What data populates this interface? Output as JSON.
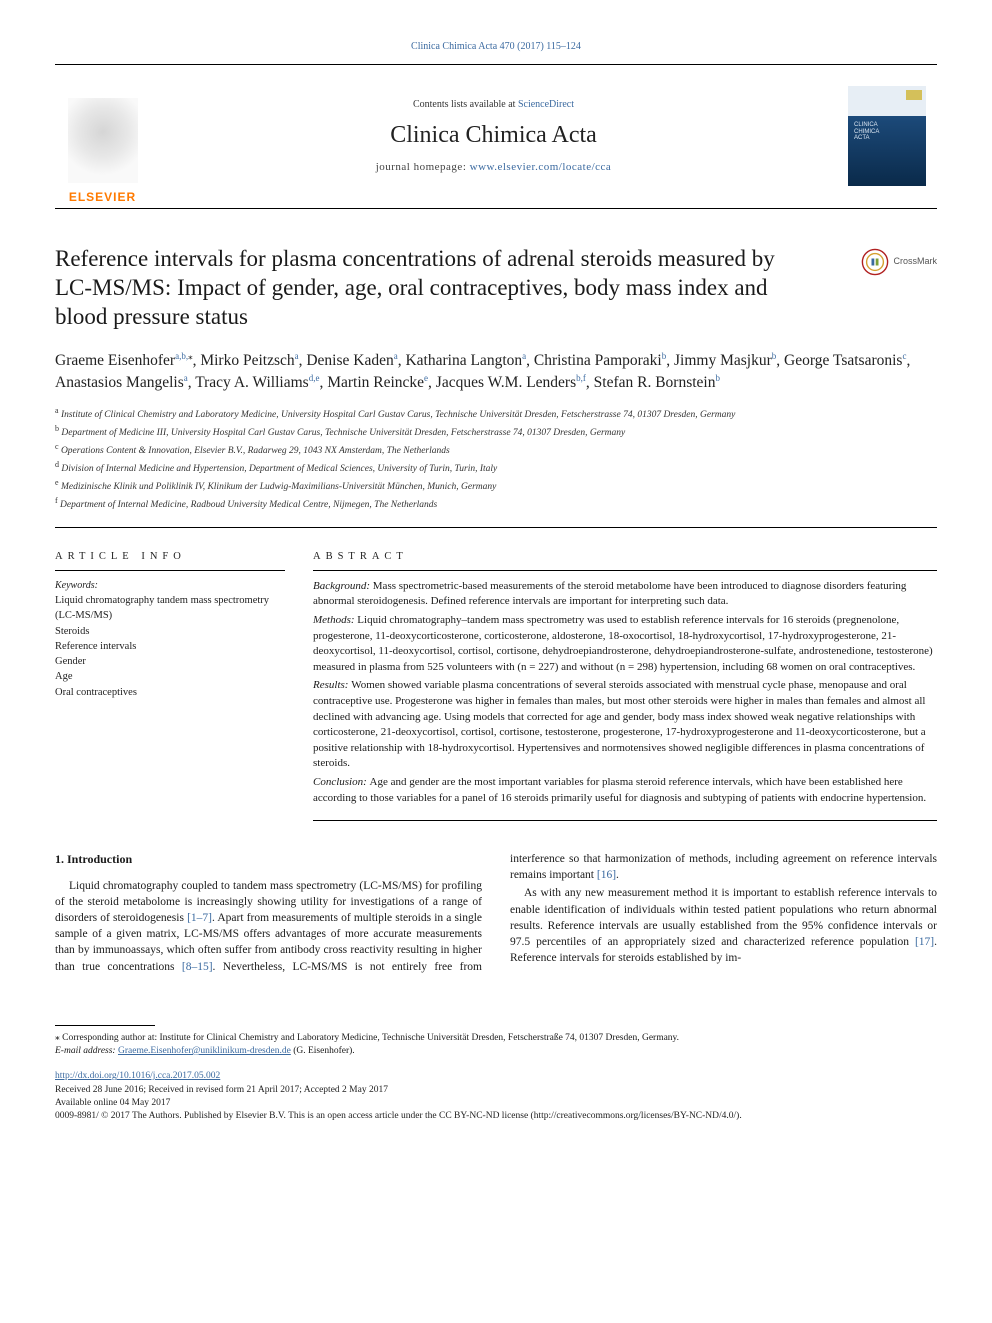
{
  "citation": "Clinica Chimica Acta 470 (2017) 115–124",
  "banner": {
    "contents_prefix": "Contents lists available at ",
    "contents_link": "ScienceDirect",
    "journal": "Clinica Chimica Acta",
    "homepage_prefix": "journal homepage: ",
    "homepage_url": "www.elsevier.com/locate/cca",
    "elsevier": "ELSEVIER",
    "cover_text": "CLINICA\nCHIMICA\nACTA"
  },
  "title": "Reference intervals for plasma concentrations of adrenal steroids measured by LC-MS/MS: Impact of gender, age, oral contraceptives, body mass index and blood pressure status",
  "crossmark": "CrossMark",
  "authors_html": "Graeme Eisenhofer<sup>a,b,</sup><sup class='star'>⁎</sup>, Mirko Peitzsch<sup>a</sup>, Denise Kaden<sup>a</sup>, Katharina Langton<sup>a</sup>, Christina Pamporaki<sup>b</sup>, Jimmy Masjkur<sup>b</sup>, George Tsatsaronis<sup>c</sup>, Anastasios Mangelis<sup>a</sup>, Tracy A. Williams<sup>d,e</sup>, Martin Reincke<sup>e</sup>, Jacques W.M. Lenders<sup>b,f</sup>, Stefan R. Bornstein<sup>b</sup>",
  "affiliations": [
    {
      "k": "a",
      "v": "Institute of Clinical Chemistry and Laboratory Medicine, University Hospital Carl Gustav Carus, Technische Universität Dresden, Fetscherstrasse 74, 01307 Dresden, Germany"
    },
    {
      "k": "b",
      "v": "Department of Medicine III, University Hospital Carl Gustav Carus, Technische Universität Dresden, Fetscherstrasse 74, 01307 Dresden, Germany"
    },
    {
      "k": "c",
      "v": "Operations Content & Innovation, Elsevier B.V., Radarweg 29, 1043 NX Amsterdam, The Netherlands"
    },
    {
      "k": "d",
      "v": "Division of Internal Medicine and Hypertension, Department of Medical Sciences, University of Turin, Turin, Italy"
    },
    {
      "k": "e",
      "v": "Medizinische Klinik und Poliklinik IV, Klinikum der Ludwig-Maximilians-Universität München, Munich, Germany"
    },
    {
      "k": "f",
      "v": "Department of Internal Medicine, Radboud University Medical Centre, Nijmegen, The Netherlands"
    }
  ],
  "article_info_head": "ARTICLE INFO",
  "abstract_head": "ABSTRACT",
  "keywords_label": "Keywords:",
  "keywords": [
    "Liquid chromatography tandem mass spectrometry (LC-MS/MS)",
    "Steroids",
    "Reference intervals",
    "Gender",
    "Age",
    "Oral contraceptives"
  ],
  "abstract": {
    "background": "Mass spectrometric-based measurements of the steroid metabolome have been introduced to diagnose disorders featuring abnormal steroidogenesis. Defined reference intervals are important for interpreting such data.",
    "methods": "Liquid chromatography–tandem mass spectrometry was used to establish reference intervals for 16 steroids (pregnenolone, progesterone, 11-deoxycorticosterone, corticosterone, aldosterone, 18-oxocortisol, 18-hydroxycortisol, 17-hydroxyprogesterone, 21-deoxycortisol, 11-deoxycortisol, cortisol, cortisone, dehydroepiandrosterone, dehydroepiandrosterone-sulfate, androstenedione, testosterone) measured in plasma from 525 volunteers with (n = 227) and without (n = 298) hypertension, including 68 women on oral contraceptives.",
    "results": "Women showed variable plasma concentrations of several steroids associated with menstrual cycle phase, menopause and oral contraceptive use. Progesterone was higher in females than males, but most other steroids were higher in males than females and almost all declined with advancing age. Using models that corrected for age and gender, body mass index showed weak negative relationships with corticosterone, 21-deoxycortisol, cortisol, cortisone, testosterone, progesterone, 17-hydroxyprogesterone and 11-deoxycorticosterone, but a positive relationship with 18-hydroxycortisol. Hypertensives and normotensives showed negligible differences in plasma concentrations of steroids.",
    "conclusion": "Age and gender are the most important variables for plasma steroid reference intervals, which have been established here according to those variables for a panel of 16 steroids primarily useful for diagnosis and subtyping of patients with endocrine hypertension."
  },
  "intro": {
    "heading": "1. Introduction",
    "p1_a": "Liquid chromatography coupled to tandem mass spectrometry (LC-MS/MS) for profiling of the steroid metabolome is increasingly showing utility for investigations of a range of disorders of steroidogenesis ",
    "p1_ref1": "[1–7]",
    "p1_b": ". Apart from measurements of multiple steroids in a single sample of a given matrix, LC-MS/MS offers advantages of more accurate measurements than by immunoassays, which often suffer from antibody cross reactivity resulting in higher than true concentrations ",
    "p1_ref2": "[8–15]",
    "p1_c": ". Nevertheless, LC-MS/MS is not entirely free from interference so that harmonization of methods, including agreement on reference intervals remains important ",
    "p1_ref3": "[16]",
    "p1_d": ".",
    "p2_a": "As with any new measurement method it is important to establish reference intervals to enable identification of individuals within tested patient populations who return abnormal results. Reference intervals are usually established from the 95% confidence intervals or 97.5 percentiles of an appropriately sized and characterized reference population ",
    "p2_ref1": "[17]",
    "p2_b": ". Reference intervals for steroids established by im-"
  },
  "footnote": {
    "corr": "⁎ Corresponding author at: Institute for Clinical Chemistry and Laboratory Medicine, Technische Universität Dresden, Fetscherstraße 74, 01307 Dresden, Germany.",
    "email_label": "E-mail address: ",
    "email": "Graeme.Eisenhofer@uniklinikum-dresden.de",
    "email_tail": " (G. Eisenhofer)."
  },
  "doi": {
    "url": "http://dx.doi.org/10.1016/j.cca.2017.05.002",
    "received": "Received 28 June 2016; Received in revised form 21 April 2017; Accepted 2 May 2017",
    "online": "Available online 04 May 2017",
    "copyright": "0009-8981/ © 2017 The Authors. Published by Elsevier B.V. This is an open access article under the CC BY-NC-ND license (http://creativecommons.org/licenses/BY-NC-ND/4.0/)."
  },
  "colors": {
    "link": "#3b6aa0",
    "orange": "#ff7a00",
    "text": "#1a1a1a"
  }
}
